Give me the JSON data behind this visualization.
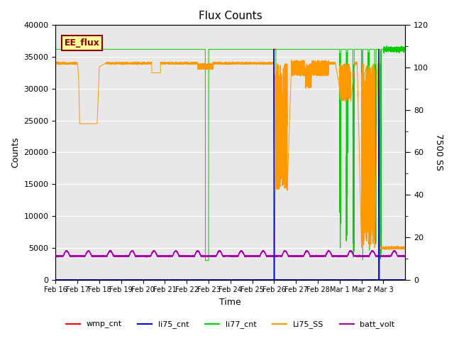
{
  "title": "Flux Counts",
  "xlabel": "Time",
  "ylabel_left": "Counts",
  "ylabel_right": "7500 SS",
  "ylim_left": [
    0,
    40000
  ],
  "ylim_right": [
    0,
    120
  ],
  "bg_color": "#e8e8e8",
  "colors": {
    "wmp_cnt": "#ff0000",
    "li75_cnt": "#0000dd",
    "li77_cnt": "#00cc00",
    "Li75_SS": "#ff9900",
    "batt_volt": "#aa00aa"
  },
  "annotation_label": "EE_flux",
  "annotation_color": "#880000",
  "annotation_bg": "#ffff99",
  "xtick_labels": [
    "Feb 16",
    "Feb 17",
    "Feb 18",
    "Feb 19",
    "Feb 20",
    "Feb 21",
    "Feb 22",
    "Feb 23",
    "Feb 24",
    "Feb 25",
    "Feb 26",
    "Feb 27",
    "Feb 28",
    "Mar 1",
    "Mar 2",
    "Mar 3"
  ],
  "yticks_left": [
    0,
    5000,
    10000,
    15000,
    20000,
    25000,
    30000,
    35000,
    40000
  ],
  "yticks_right_major": [
    0,
    20,
    40,
    60,
    80,
    100,
    120
  ],
  "yticks_right_minor": [
    10,
    30,
    50,
    70,
    90,
    110
  ]
}
